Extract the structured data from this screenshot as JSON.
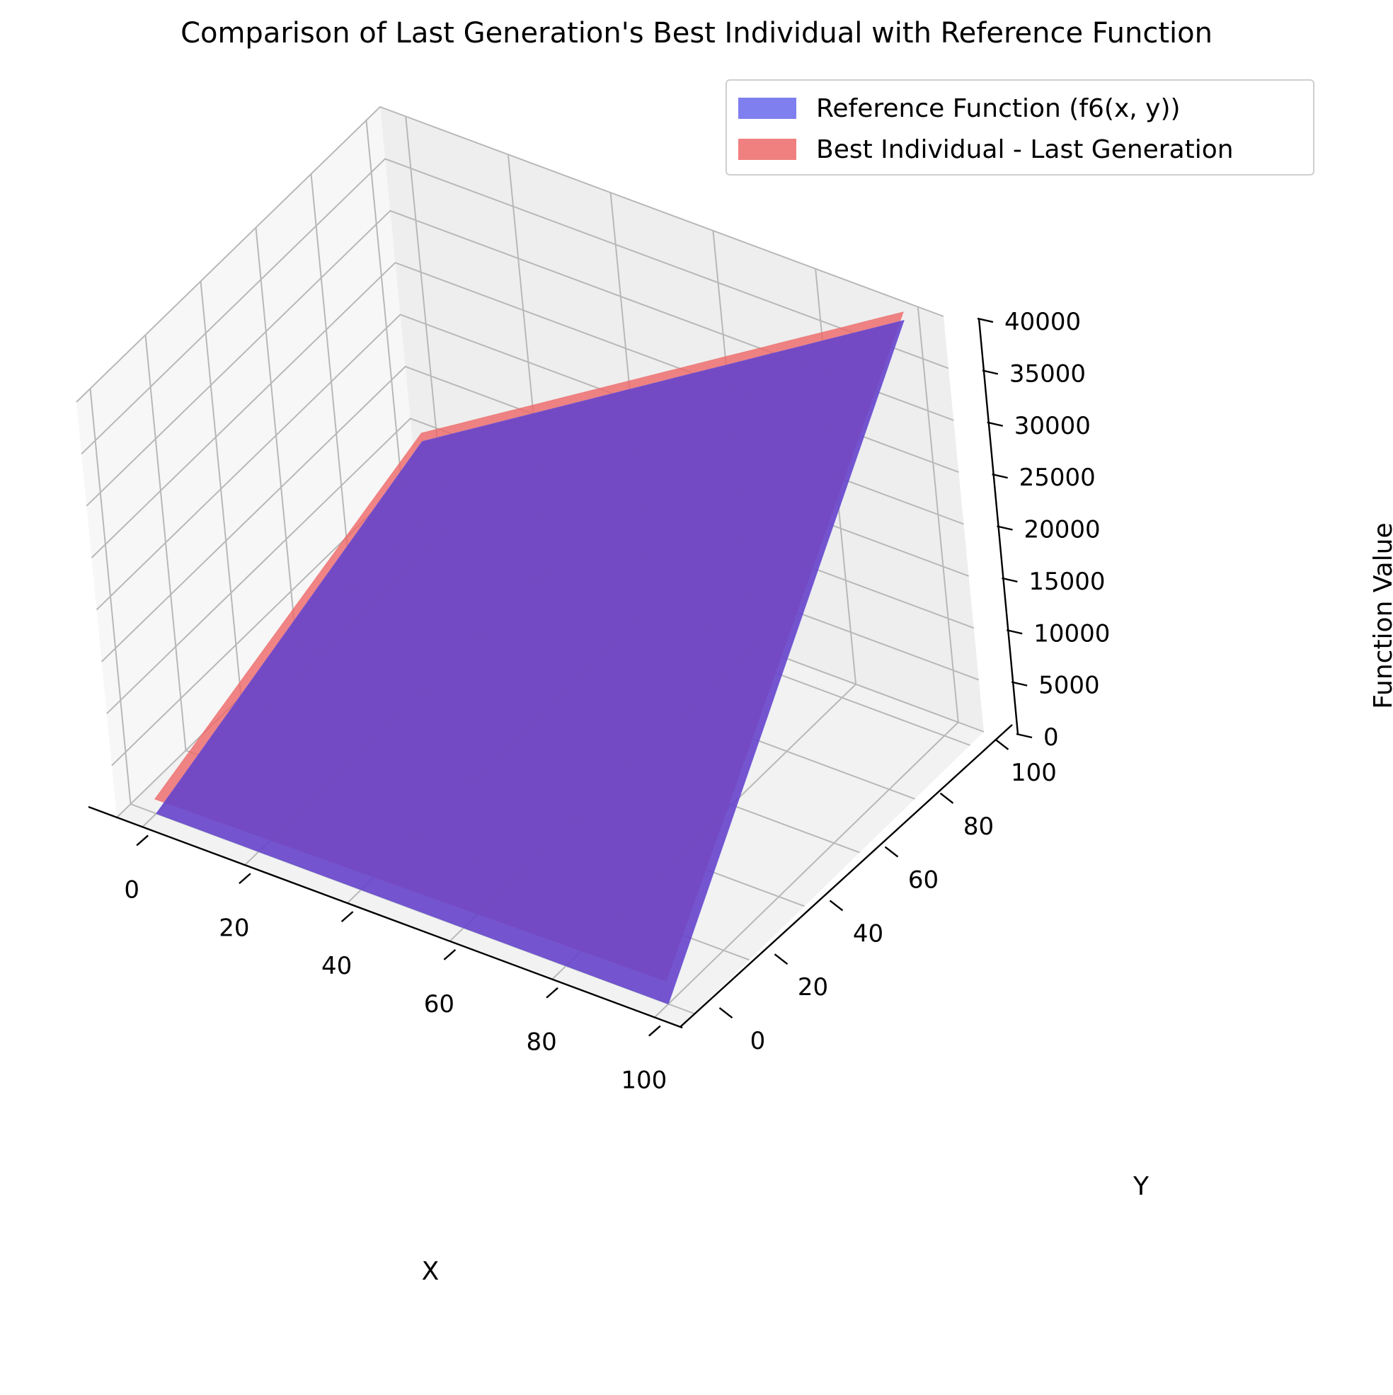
{
  "chart_data": {
    "type": "surface",
    "title": "Comparison of Last Generation's Best Individual with Reference Function",
    "xlabel": "X",
    "ylabel": "Y",
    "zlabel": "Function Value",
    "xlim": [
      -5,
      105
    ],
    "ylim": [
      -5,
      105
    ],
    "zlim": [
      0,
      40000
    ],
    "x_ticks": [
      0,
      20,
      40,
      60,
      80,
      100
    ],
    "y_ticks": [
      0,
      20,
      40,
      60,
      80,
      100
    ],
    "z_ticks": [
      0,
      5000,
      10000,
      15000,
      20000,
      25000,
      30000,
      35000,
      40000
    ],
    "grid": true,
    "legend_position": "top-right",
    "x_range": [
      0,
      100
    ],
    "y_range": [
      0,
      100
    ],
    "series": [
      {
        "name": "Reference Function (f6(x, y))",
        "color": "#6666ee",
        "alpha": 0.8,
        "corner_values": {
          "x0_y0": 0,
          "x100_y0": 0,
          "x0_y100": 10000,
          "x100_y100": 40000
        }
      },
      {
        "name": "Best Individual - Last Generation",
        "color": "#ee6666",
        "alpha": 0.8,
        "corner_values": {
          "x0_y0": 1400,
          "x100_y0": 2200,
          "x0_y100": 10800,
          "x100_y100": 40800
        }
      }
    ]
  }
}
